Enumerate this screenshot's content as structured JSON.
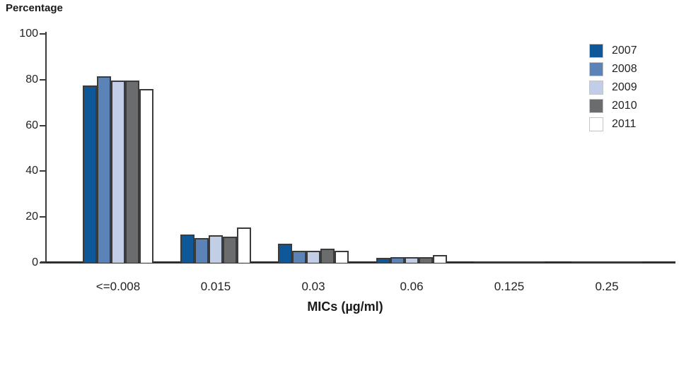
{
  "chart_data": {
    "type": "bar",
    "title": "Percentage",
    "xlabel": "MICs (µg/ml)",
    "ylabel": "Percentage",
    "ylim": [
      0,
      100
    ],
    "yticks": [
      0,
      20,
      40,
      60,
      80,
      100
    ],
    "grid": false,
    "legend_position": "top-right",
    "categories": [
      "<=0.008",
      "0.015",
      "0.03",
      "0.06",
      "0.125",
      "0.25"
    ],
    "series": [
      {
        "name": "2007",
        "color": "#0e5799",
        "values": [
          77.4,
          12.4,
          8.3,
          2.1,
          0.4,
          0.3
        ]
      },
      {
        "name": "2008",
        "color": "#5b83b8",
        "values": [
          81.5,
          10.7,
          5.2,
          2.5,
          0.4,
          0.1
        ]
      },
      {
        "name": "2009",
        "color": "#c2cee8",
        "values": [
          79.5,
          12.1,
          5.3,
          2.5,
          0.5,
          0.1
        ]
      },
      {
        "name": "2010",
        "color": "#6b6c6e",
        "values": [
          79.7,
          11.5,
          6.1,
          2.6,
          0.6,
          0.3
        ]
      },
      {
        "name": "2011",
        "color": "#ffffff",
        "values": [
          75.9,
          15.3,
          5.4,
          3.4,
          0.6,
          0.3
        ]
      }
    ],
    "bar_border_color": "#3b3b3b",
    "axis_color": "#3a3a3a"
  }
}
